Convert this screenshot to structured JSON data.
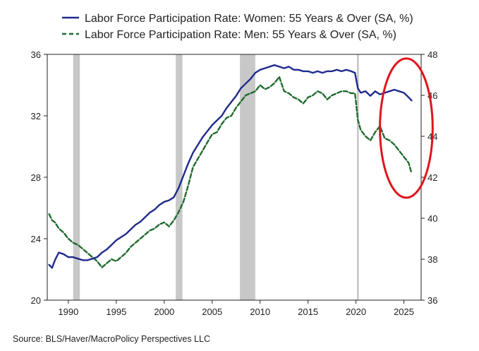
{
  "chart_data": {
    "type": "line",
    "title": "",
    "legend": [
      {
        "label": "Labor Force Participation Rate: Women: 55 Years & Over (SA, %)",
        "style": "solid",
        "axis": "left"
      },
      {
        "label": "Labor Force Participation Rate: Men: 55 Years & Over (SA, %)",
        "style": "dashed",
        "axis": "right"
      }
    ],
    "x_axis": {
      "range": [
        1987.8,
        2026.8
      ],
      "ticks": [
        1990,
        1995,
        2000,
        2005,
        2010,
        2015,
        2020,
        2025
      ],
      "tick_labels": [
        "1990",
        "1995",
        "2000",
        "2005",
        "2010",
        "2015",
        "2020",
        "2025"
      ]
    },
    "y_left": {
      "range": [
        20,
        36
      ],
      "ticks": [
        20,
        24,
        28,
        32,
        36
      ],
      "tick_labels": [
        "20",
        "24",
        "28",
        "32",
        "36"
      ]
    },
    "y_right": {
      "range": [
        36,
        48
      ],
      "ticks": [
        36,
        38,
        40,
        42,
        44,
        46,
        48
      ],
      "tick_labels": [
        "36",
        "38",
        "40",
        "42",
        "44",
        "46",
        "48"
      ]
    },
    "recessions": [
      [
        1990.5,
        1991.2
      ],
      [
        2001.2,
        2001.9
      ],
      [
        2007.9,
        2009.5
      ],
      [
        2020.1,
        2020.3
      ]
    ],
    "series": [
      {
        "name": "Women: 55 Years & Over",
        "axis": "left",
        "color": "#1f2a8c",
        "x": [
          1988.0,
          1988.3,
          1988.6,
          1989.0,
          1989.5,
          1990.0,
          1990.5,
          1991.0,
          1991.5,
          1992.0,
          1992.5,
          1993.0,
          1993.5,
          1994.0,
          1994.5,
          1995.0,
          1995.5,
          1996.0,
          1996.5,
          1997.0,
          1997.5,
          1998.0,
          1998.5,
          1999.0,
          1999.5,
          2000.0,
          2000.5,
          2001.0,
          2001.5,
          2002.0,
          2002.5,
          2003.0,
          2003.5,
          2004.0,
          2004.5,
          2005.0,
          2005.5,
          2006.0,
          2006.5,
          2007.0,
          2007.5,
          2008.0,
          2008.5,
          2009.0,
          2009.5,
          2010.0,
          2010.5,
          2011.0,
          2011.5,
          2012.0,
          2012.5,
          2013.0,
          2013.5,
          2014.0,
          2014.5,
          2015.0,
          2015.5,
          2016.0,
          2016.5,
          2017.0,
          2017.5,
          2018.0,
          2018.5,
          2019.0,
          2019.5,
          2019.9,
          2020.2,
          2020.5,
          2021.0,
          2021.5,
          2022.0,
          2022.5,
          2023.0,
          2023.5,
          2024.0,
          2024.5,
          2025.0,
          2025.5,
          2025.8
        ],
        "values": [
          22.3,
          22.1,
          22.6,
          23.1,
          23.0,
          22.8,
          22.8,
          22.7,
          22.6,
          22.6,
          22.7,
          22.8,
          23.1,
          23.3,
          23.6,
          23.9,
          24.1,
          24.3,
          24.6,
          24.9,
          25.1,
          25.4,
          25.7,
          25.9,
          26.2,
          26.4,
          26.5,
          26.7,
          27.3,
          28.1,
          28.9,
          29.6,
          30.1,
          30.6,
          31.0,
          31.4,
          31.7,
          32.0,
          32.5,
          32.9,
          33.3,
          33.8,
          34.1,
          34.4,
          34.8,
          35.0,
          35.1,
          35.2,
          35.3,
          35.2,
          35.1,
          35.2,
          35.0,
          35.0,
          34.9,
          34.9,
          34.8,
          34.9,
          34.8,
          34.9,
          34.9,
          35.0,
          34.9,
          35.0,
          34.9,
          34.8,
          33.8,
          33.5,
          33.6,
          33.3,
          33.6,
          33.4,
          33.5,
          33.6,
          33.7,
          33.6,
          33.5,
          33.2,
          33.0
        ]
      },
      {
        "name": "Men: 55 Years & Over",
        "axis": "right",
        "color": "#1e6b2e",
        "x": [
          1988.0,
          1988.3,
          1988.6,
          1989.0,
          1989.5,
          1990.0,
          1990.5,
          1991.0,
          1991.5,
          1992.0,
          1992.5,
          1993.0,
          1993.5,
          1994.0,
          1994.5,
          1995.0,
          1995.5,
          1996.0,
          1996.5,
          1997.0,
          1997.5,
          1998.0,
          1998.5,
          1999.0,
          1999.5,
          2000.0,
          2000.5,
          2001.0,
          2001.5,
          2002.0,
          2002.5,
          2003.0,
          2003.5,
          2004.0,
          2004.5,
          2005.0,
          2005.5,
          2006.0,
          2006.5,
          2007.0,
          2007.5,
          2008.0,
          2008.5,
          2009.0,
          2009.5,
          2010.0,
          2010.5,
          2011.0,
          2011.5,
          2012.0,
          2012.5,
          2013.0,
          2013.5,
          2014.0,
          2014.5,
          2015.0,
          2015.5,
          2016.0,
          2016.5,
          2017.0,
          2017.5,
          2018.0,
          2018.5,
          2019.0,
          2019.5,
          2019.9,
          2020.2,
          2020.5,
          2021.0,
          2021.5,
          2022.0,
          2022.5,
          2023.0,
          2023.5,
          2024.0,
          2024.5,
          2025.0,
          2025.5,
          2025.8
        ],
        "values": [
          40.2,
          39.9,
          39.8,
          39.5,
          39.3,
          39.0,
          38.8,
          38.7,
          38.5,
          38.3,
          38.1,
          37.9,
          37.6,
          37.8,
          38.0,
          37.9,
          38.1,
          38.3,
          38.6,
          38.8,
          39.0,
          39.2,
          39.4,
          39.5,
          39.7,
          39.8,
          39.6,
          39.9,
          40.3,
          40.8,
          41.6,
          42.5,
          42.9,
          43.3,
          43.7,
          44.1,
          44.2,
          44.6,
          44.9,
          45.0,
          45.4,
          45.7,
          46.0,
          46.1,
          46.2,
          46.5,
          46.3,
          46.4,
          46.6,
          46.9,
          46.2,
          46.1,
          45.9,
          45.8,
          45.6,
          45.9,
          46.0,
          46.2,
          46.1,
          45.8,
          46.0,
          46.1,
          46.2,
          46.2,
          46.1,
          46.1,
          44.8,
          44.3,
          44.0,
          43.8,
          44.2,
          44.5,
          43.9,
          43.8,
          43.6,
          43.3,
          43.0,
          42.7,
          42.2
        ]
      }
    ],
    "annotation": {
      "type": "ellipse",
      "color": "#e0141c",
      "around_x": [
        2022.5,
        2028.0
      ],
      "around_y_right": [
        41.0,
        47.8
      ]
    }
  },
  "source_text": "Source:  BLS/Haver/MacroPolicy Perspectives LLC"
}
